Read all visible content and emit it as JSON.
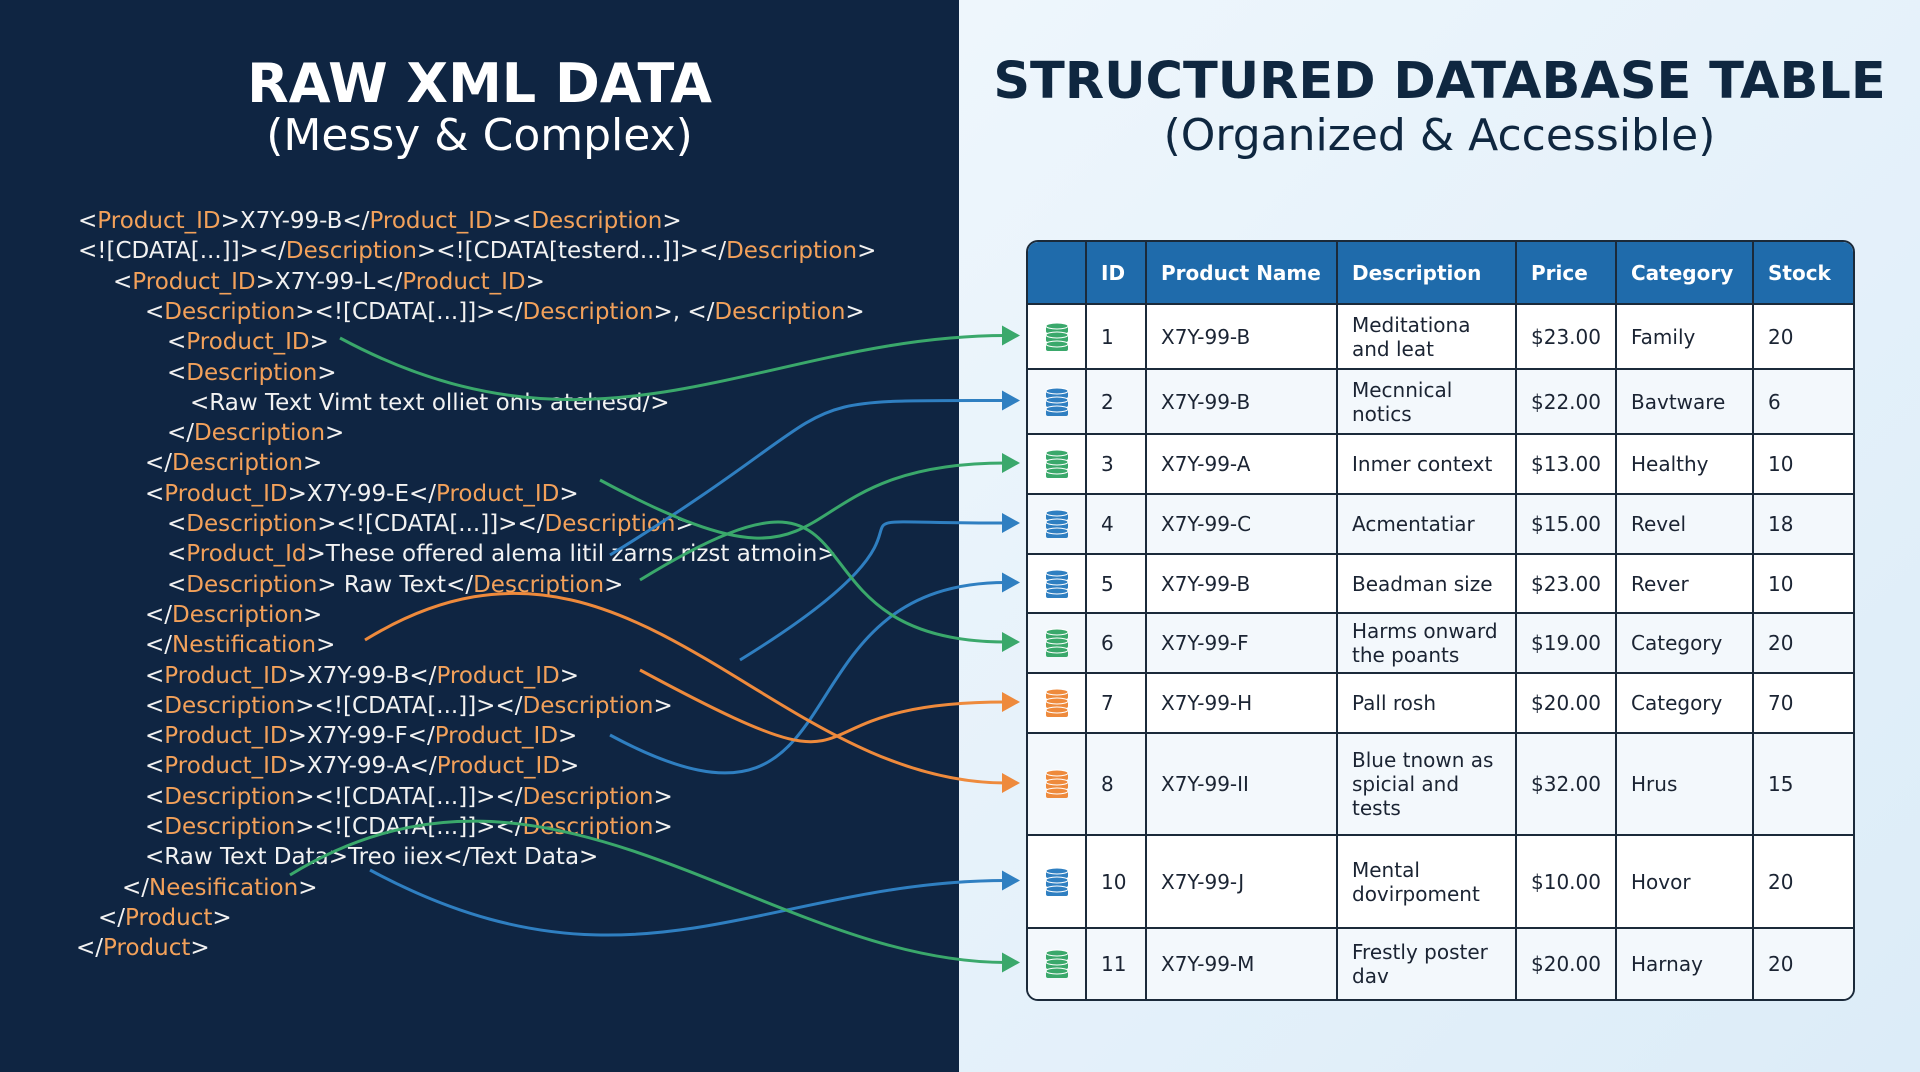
{
  "left": {
    "title": "RAW XML DATA",
    "subtitle": "(Messy & Complex)",
    "xml_lines": [
      [
        "<",
        "Product_ID",
        ">X7Y-99-B</",
        "Product_ID",
        "><",
        "Description",
        ">"
      ],
      [
        "<![CDATA[...]]></",
        "Description",
        "><![CDATA[testerd...]]></",
        "Description",
        ">"
      ],
      [
        "<",
        "Product_ID",
        ">X7Y-99-L</",
        "Product_ID",
        ">"
      ],
      [
        "<",
        "Description",
        "><![CDATA[...]]></",
        "Description",
        ">, </",
        "Description",
        ">"
      ],
      [
        "<",
        "Product_ID",
        ">"
      ],
      [
        "<",
        "Description",
        ">"
      ],
      [
        "<Raw Text Vimt text olliet onls atehesd/>"
      ],
      [
        "</",
        "Description",
        ">"
      ],
      [
        "</",
        "Description",
        ">"
      ],
      [
        "<",
        "Product_ID",
        ">X7Y-99-E</",
        "Product_ID",
        ">"
      ],
      [
        "<",
        "Description",
        "><![CDATA[...]]></",
        "Description",
        ">"
      ],
      [
        "<",
        "Product_Id",
        ">These offered alema litil zarns rizst atmoin>"
      ],
      [
        "<",
        "Description",
        "> Raw Text</",
        "Description",
        ">"
      ],
      [
        "</",
        "Description",
        ">"
      ],
      [
        "</",
        "Nestification",
        ">"
      ],
      [
        "<",
        "Product_ID",
        ">X7Y-99-B</",
        "Product_ID",
        ">"
      ],
      [
        "<",
        "Description",
        "><![CDATA[...]]></",
        "Description",
        ">"
      ],
      [
        "<",
        "Product_ID",
        ">X7Y-99-F</",
        "Product_ID",
        ">"
      ],
      [
        "<",
        "Product_ID",
        ">X7Y-99-A</",
        "Product_ID",
        ">"
      ],
      [
        "<",
        "Description",
        "><![CDATA[...]]></",
        "Description",
        ">"
      ],
      [
        "<",
        "Description",
        "><![CDATA[...]]></",
        "Description",
        ">"
      ],
      [
        "<Raw Text Data>Treo iiex</Text Data>"
      ],
      [
        "</",
        "Neesification",
        ">"
      ],
      [
        "</",
        "Product",
        ">"
      ],
      [
        "</",
        "Product",
        ">"
      ]
    ]
  },
  "right": {
    "title": "STRUCTURED DATABASE TABLE",
    "subtitle": "(Organized & Accessible)",
    "table": {
      "columns": [
        "ID",
        "Product Name",
        "Description",
        "Price",
        "Category",
        "Stock"
      ],
      "rows": [
        {
          "icon_color": "#3aa86b",
          "cells": [
            "1",
            "X7Y-99-B",
            "Meditationa and leat",
            "$23.00",
            "Family",
            "20"
          ]
        },
        {
          "icon_color": "#2f7fc1",
          "cells": [
            "2",
            "X7Y-99-B",
            "Mecnnical notics",
            "$22.00",
            "Bavtware",
            "6"
          ]
        },
        {
          "icon_color": "#3aa86b",
          "cells": [
            "3",
            "X7Y-99-A",
            "Inmer context",
            "$13.00",
            "Healthy",
            "10"
          ]
        },
        {
          "icon_color": "#2f7fc1",
          "cells": [
            "4",
            "X7Y-99-C",
            "Acmentatiar",
            "$15.00",
            "Revel",
            "18"
          ]
        },
        {
          "icon_color": "#2f7fc1",
          "cells": [
            "5",
            "X7Y-99-B",
            "Beadman size",
            "$23.00",
            "Rever",
            "10"
          ]
        },
        {
          "icon_color": "#3aa86b",
          "cells": [
            "6",
            "X7Y-99-F",
            "Harms onward the poants",
            "$19.00",
            "Category",
            "20"
          ]
        },
        {
          "icon_color": "#ee8a3c",
          "cells": [
            "7",
            "X7Y-99-H",
            "Pall rosh",
            "$20.00",
            "Category",
            "70"
          ]
        },
        {
          "icon_color": "#ee8a3c",
          "cells": [
            "8",
            "X7Y-99-II",
            "Blue tnown as spicial and tests",
            "$32.00",
            "Hrus",
            "15"
          ]
        },
        {
          "icon_color": "#2f7fc1",
          "cells": [
            "10",
            "X7Y-99-J",
            "Mental dovirpoment",
            "$10.00",
            "Hovor",
            "20"
          ]
        },
        {
          "icon_color": "#3aa86b",
          "cells": [
            "11",
            "X7Y-99-M",
            "Frestly poster dav",
            "$20.00",
            "Harnay",
            "20"
          ]
        }
      ]
    }
  }
}
